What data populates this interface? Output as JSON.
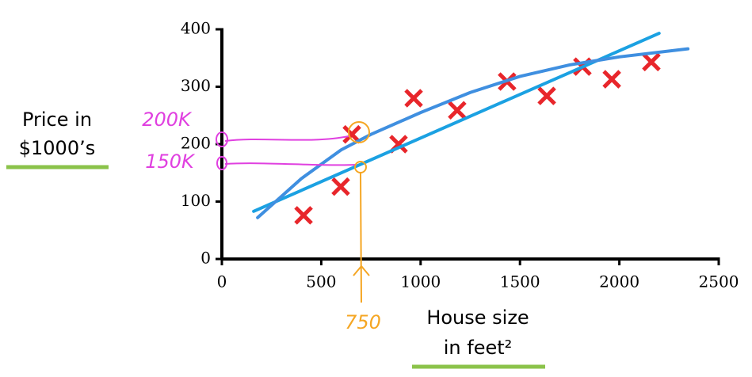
{
  "chart_data": {
    "type": "scatter",
    "ylabel": [
      "Price in",
      "$1000’s"
    ],
    "xlabel": [
      "House size",
      "in feet²"
    ],
    "xlim": [
      0,
      2500
    ],
    "xticks": [
      0,
      500,
      1000,
      1500,
      2000,
      2500
    ],
    "ylim": [
      0,
      400
    ],
    "yticks": [
      0,
      100,
      200,
      300,
      400
    ],
    "series": [
      {
        "marker": "x",
        "color": "#e8262b",
        "x": [
          411,
          598,
          654,
          889,
          965,
          1184,
          1435,
          1635,
          1814,
          1962,
          2161
        ],
        "values": [
          76,
          126,
          217,
          200,
          280,
          259,
          309,
          284,
          335,
          313,
          343
        ]
      },
      {
        "marker": "line",
        "color": "#1ba1e2",
        "x": [
          160,
          2200
        ],
        "values": [
          83,
          393
        ]
      },
      {
        "marker": "line",
        "color": "#3f8fe0",
        "x": [
          180,
          400,
          600,
          750,
          1000,
          1250,
          1500,
          1750,
          2000,
          2345
        ],
        "values": [
          72,
          140,
          190,
          217,
          255,
          290,
          318,
          338,
          352,
          366
        ]
      }
    ],
    "annotations": [
      "200K",
      "150K",
      "750"
    ]
  }
}
